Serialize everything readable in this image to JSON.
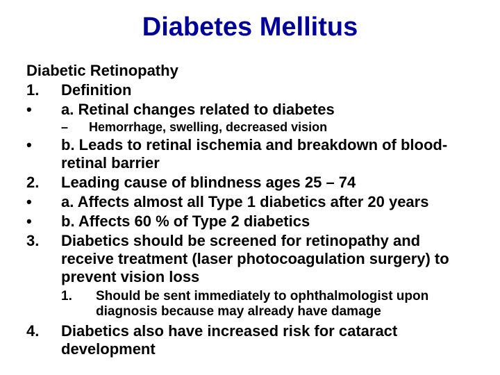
{
  "title": {
    "text": "Diabetes Mellitus",
    "fontsize": 38,
    "color": "#000099"
  },
  "subtitle": {
    "text": "Diabetic Retinopathy",
    "fontsize": 22
  },
  "body_fontsize": 22,
  "sub_fontsize": 18,
  "sub2_fontsize": 19,
  "items": [
    {
      "marker": "1.",
      "text": "Definition"
    },
    {
      "marker": "•",
      "text": "a. Retinal changes related to diabetes"
    }
  ],
  "sub_dash": {
    "marker": "–",
    "text": "Hemorrhage, swelling, decreased vision"
  },
  "items2": [
    {
      "marker": "•",
      "text": "b. Leads to retinal ischemia and breakdown of blood-retinal barrier"
    },
    {
      "marker": "2.",
      "text": "Leading cause of blindness ages 25 – 74"
    },
    {
      "marker": "•",
      "text": "a. Affects almost all Type 1 diabetics after 20 years"
    },
    {
      "marker": "•",
      "text": "b. Affects 60 % of Type 2 diabetics"
    },
    {
      "marker": "3.",
      "text": "Diabetics should be screened for retinopathy and receive treatment (laser photocoagulation surgery) to prevent vision loss"
    }
  ],
  "sub_num": {
    "marker": "1.",
    "text": "Should be sent immediately to ophthalmologist upon diagnosis because may already have damage"
  },
  "items3": [
    {
      "marker": "4.",
      "text": "Diabetics also have increased risk for cataract development"
    }
  ]
}
